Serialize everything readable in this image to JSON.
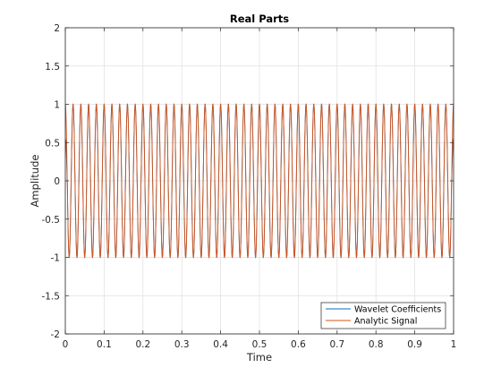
{
  "chart_data": {
    "type": "line",
    "title": "Real Parts",
    "xlabel": "Time",
    "ylabel": "Amplitude",
    "xlim": [
      0,
      1
    ],
    "ylim": [
      -2,
      2
    ],
    "xticks": [
      0,
      0.1,
      0.2,
      0.3,
      0.4,
      0.5,
      0.6,
      0.7,
      0.8,
      0.9,
      1
    ],
    "xtick_labels": [
      "0",
      "0.1",
      "0.2",
      "0.3",
      "0.4",
      "0.5",
      "0.6",
      "0.7",
      "0.8",
      "0.9",
      "1"
    ],
    "yticks": [
      -2,
      -1.5,
      -1,
      -0.5,
      0,
      0.5,
      1,
      1.5,
      2
    ],
    "ytick_labels": [
      "-2",
      "-1.5",
      "-1",
      "-0.5",
      "0",
      "0.5",
      "1",
      "1.5",
      "2"
    ],
    "grid": true,
    "legend_position": "bottom-right",
    "series": [
      {
        "name": "Wavelet Coefficients",
        "color": "#0072BD",
        "function": "cos",
        "frequency_hz": 50,
        "amplitude": 1,
        "edge_effect": true
      },
      {
        "name": "Analytic Signal",
        "color": "#D95319",
        "function": "cos",
        "frequency_hz": 50,
        "amplitude": 1
      }
    ]
  }
}
